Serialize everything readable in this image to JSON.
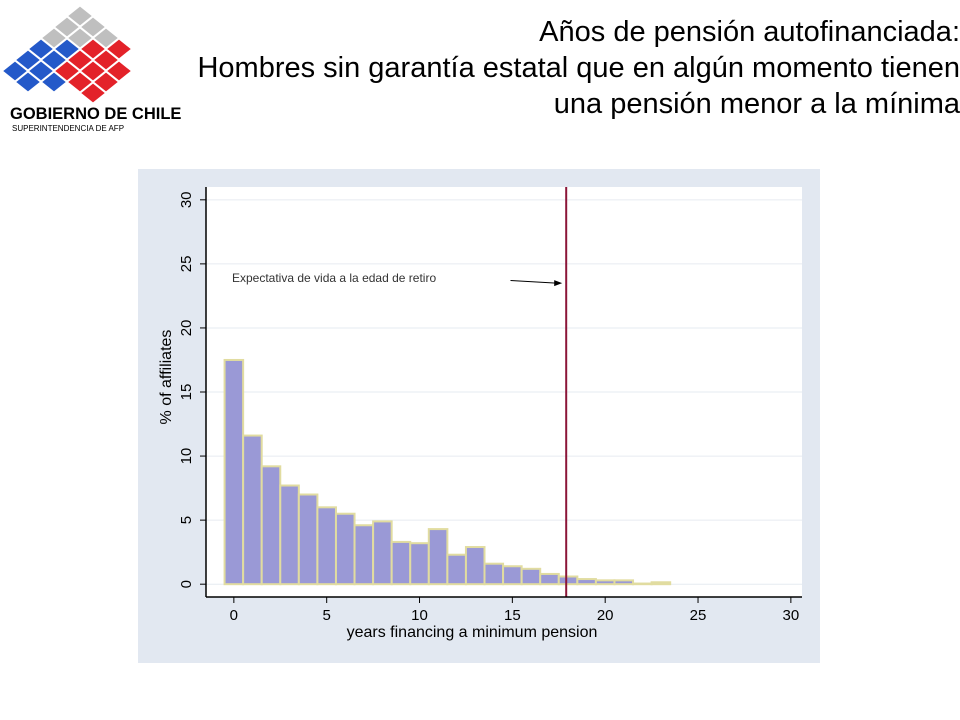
{
  "header": {
    "logo": {
      "name": "GOBIERNO DE CHILE",
      "subname": "SUPERINTENDENCIA DE AFP",
      "colors": {
        "blue": "#2459c9",
        "red": "#e32229",
        "gray": "#bfbfbf"
      }
    },
    "title_lines": [
      "Años de pensión autofinanciada:",
      "Hombres sin garantía estatal que en algún momento tienen",
      "una pensión menor a la mínima"
    ]
  },
  "chart_data": {
    "type": "bar",
    "xlabel": "years financing a minimum pension",
    "ylabel": "% of affiliates",
    "xlim": [
      -1.5,
      30.6
    ],
    "ylim": [
      -1,
      31
    ],
    "xticks": [
      0,
      5,
      10,
      15,
      20,
      25,
      30
    ],
    "yticks": [
      0,
      5,
      10,
      15,
      20,
      25,
      30
    ],
    "bin_width": 1,
    "bins": [
      {
        "x": 0,
        "value": 17.5
      },
      {
        "x": 1,
        "value": 11.6
      },
      {
        "x": 2,
        "value": 9.2
      },
      {
        "x": 3,
        "value": 7.7
      },
      {
        "x": 4,
        "value": 7.0
      },
      {
        "x": 5,
        "value": 6.0
      },
      {
        "x": 6,
        "value": 5.5
      },
      {
        "x": 7,
        "value": 4.6
      },
      {
        "x": 8,
        "value": 4.9
      },
      {
        "x": 9,
        "value": 3.3
      },
      {
        "x": 10,
        "value": 3.2
      },
      {
        "x": 11,
        "value": 4.3
      },
      {
        "x": 12,
        "value": 2.3
      },
      {
        "x": 13,
        "value": 2.9
      },
      {
        "x": 14,
        "value": 1.6
      },
      {
        "x": 15,
        "value": 1.4
      },
      {
        "x": 16,
        "value": 1.2
      },
      {
        "x": 17,
        "value": 0.8
      },
      {
        "x": 18,
        "value": 0.6
      },
      {
        "x": 19,
        "value": 0.4
      },
      {
        "x": 20,
        "value": 0.3
      },
      {
        "x": 21,
        "value": 0.3
      },
      {
        "x": 22,
        "value": 0.05
      },
      {
        "x": 23,
        "value": 0.15
      }
    ],
    "reference_line": {
      "x": 17.9,
      "color": "#8b1538"
    },
    "annotation": {
      "text": "Expectativa de vida a la edad de retiro"
    },
    "bar_fill": "#9a99d6",
    "bar_edge": "#e1dca0",
    "plot_background": "#ffffff",
    "panel_background": "#e2e8f1",
    "grid": true,
    "gridline_color": "#e6ebf1",
    "legend": "none"
  }
}
